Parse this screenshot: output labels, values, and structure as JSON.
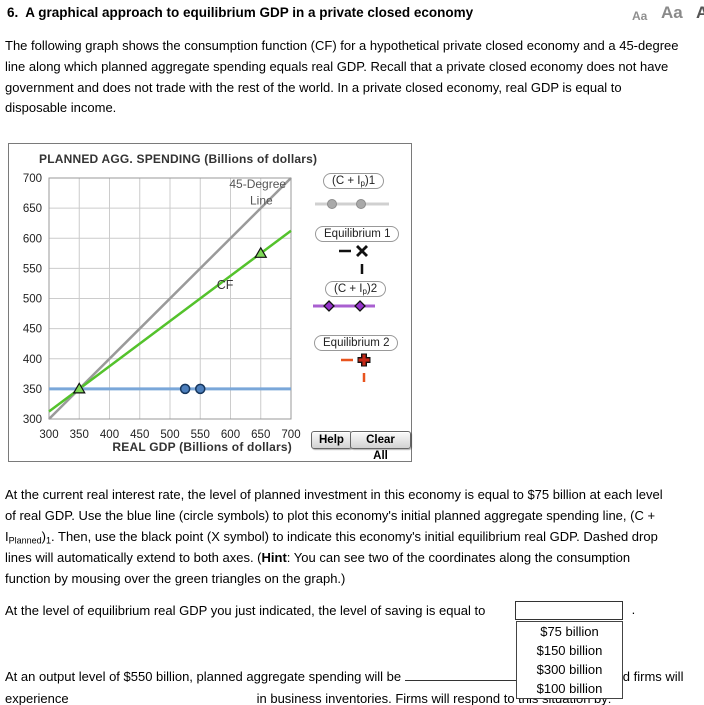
{
  "header": {
    "title": "6.  A graphical approach to equilibrium GDP in a private closed economy",
    "font_controls": [
      "Aa",
      "Aa",
      "Aa"
    ]
  },
  "intro": {
    "lines": [
      "The following graph shows the consumption function (CF) for a hypothetical private closed economy and a 45-degree",
      "line along which planned aggregate spending equals real GDP. Recall that a private closed economy does not have",
      "government and does not trade with the rest of the world. In a private closed economy, real GDP is equal to",
      "disposable income."
    ]
  },
  "chart_data": {
    "type": "line",
    "title": "PLANNED AGG. SPENDING (Billions of dollars)",
    "xlabel": "REAL GDP (Billions of dollars)",
    "xlim": [
      300,
      700
    ],
    "ylim": [
      300,
      700
    ],
    "xticks": [
      300,
      350,
      400,
      450,
      500,
      550,
      600,
      650,
      700
    ],
    "yticks": [
      300,
      350,
      400,
      450,
      500,
      550,
      600,
      650,
      700
    ],
    "grid": true,
    "series": [
      {
        "name": "45-Degree Line",
        "color": "#9a9a9a",
        "width": 2.5,
        "points": [
          [
            300,
            300
          ],
          [
            700,
            700
          ]
        ]
      },
      {
        "name": "CF",
        "color": "#54c22c",
        "width": 2.5,
        "points": [
          [
            300,
            312.5
          ],
          [
            700,
            612.5
          ]
        ],
        "marker": "triangle",
        "marker_fill": "#7ed957",
        "marker_stroke": "#111111",
        "markers": [
          [
            350,
            350
          ],
          [
            650,
            575
          ]
        ]
      },
      {
        "name": "(C + Ip)1",
        "color": "#7aa7d9",
        "width": 3,
        "points": [
          [
            300,
            350
          ],
          [
            700,
            350
          ]
        ],
        "marker": "circle",
        "marker_fill": "#4d7fbc",
        "marker_stroke": "#17375e",
        "markers": [
          [
            525,
            350
          ],
          [
            550,
            350
          ]
        ]
      }
    ],
    "annotations": [
      {
        "text": "45-Degree",
        "x": 645,
        "y": 683,
        "color": "#555555",
        "size": 12
      },
      {
        "text": "Line",
        "x": 651,
        "y": 656,
        "color": "#555555",
        "size": 12
      },
      {
        "text": "CF",
        "x": 591,
        "y": 516,
        "color": "#333333",
        "size": 12.5
      }
    ]
  },
  "graph_panel": {
    "legend": [
      {
        "pre": "(C + I",
        "sub": "p",
        "post": ")1",
        "line_color": "#d0d0d0",
        "marker_color": "#a9a9a9",
        "marker_stroke": "#8c8c8c"
      },
      {
        "label": "Equilibrium 1",
        "color": "#111111"
      },
      {
        "pre": "(C + I",
        "sub": "p",
        "post": ")2",
        "line_color": "#a95fd0",
        "marker_color": "#9633cc",
        "marker_stroke": "#111111"
      },
      {
        "label": "Equilibrium 2",
        "dash_color": "#e8541e",
        "marker_color": "#c62817",
        "marker_stroke": "#111111"
      }
    ],
    "help_button": "Help",
    "clear_button": "Clear All"
  },
  "invest_para": {
    "line1": "At the current real interest rate, the level of planned investment in this economy is equal to $75 billion at each level",
    "line2": "of real GDP. Use the blue line (circle symbols) to plot this economy's initial planned aggregate spending line, (C +",
    "line3": {
      "i": "I",
      "sub": "Planned",
      "close": ")",
      "sub2": "1",
      "rest": ". Then, use the black point (X symbol) to indicate this economy's initial equilibrium real GDP. Dashed drop"
    },
    "line4": {
      "pre": "lines will automatically extend to both axes. (",
      "hint": "Hint",
      "rest": ": You can see two of the coordinates along the consumption"
    },
    "line5": "function by mousing over the green triangles on the graph.)"
  },
  "saving_question": {
    "text": "At the level of equilibrium real GDP you just indicated, the level of saving is equal to",
    "period": "."
  },
  "dropdown": {
    "options": [
      "$75 billion",
      "$150 billion",
      "$300 billion",
      "$100 billion"
    ]
  },
  "output_question": {
    "line1_pre": "At an output level of $550 billion, planned aggregate spending will be",
    "line1_post": "and firms will",
    "line2_pre": "experience",
    "line2_post": "in business inventories. Firms will respond to this situation by:"
  }
}
